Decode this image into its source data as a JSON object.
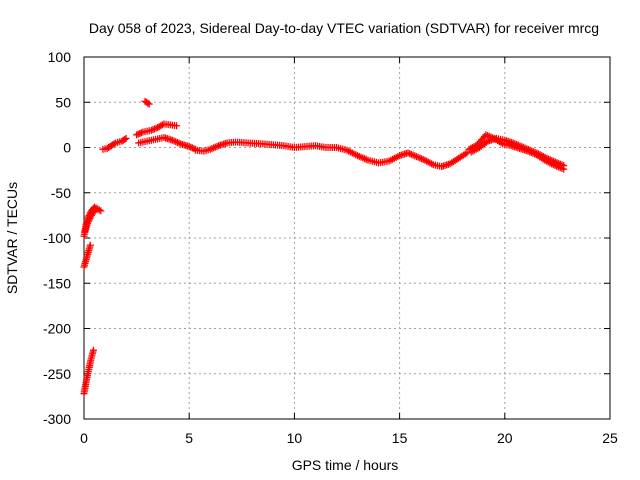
{
  "chart_data": {
    "type": "scatter",
    "title": "Day 058 of 2023, Sidereal Day-to-day VTEC variation (SDTVAR) for receiver mrcg",
    "xlabel": "GPS time / hours",
    "ylabel": "SDTVAR / TECUs",
    "xlim": [
      0,
      25
    ],
    "ylim": [
      -300,
      100
    ],
    "xticks": [
      0,
      5,
      10,
      15,
      20,
      25
    ],
    "yticks": [
      -300,
      -250,
      -200,
      -150,
      -100,
      -50,
      0,
      50,
      100
    ],
    "grid": true,
    "marker": "+",
    "series": [
      {
        "name": "SDTVAR",
        "color": "#ff0000",
        "segments": [
          [
            [
              0.0,
              -272
            ],
            [
              0.08,
              -262
            ],
            [
              0.16,
              -252
            ],
            [
              0.25,
              -243
            ],
            [
              0.32,
              -235
            ],
            [
              0.4,
              -228
            ],
            [
              0.45,
              -224
            ]
          ],
          [
            [
              0.0,
              -132
            ],
            [
              0.1,
              -124
            ],
            [
              0.2,
              -116
            ],
            [
              0.3,
              -108
            ]
          ],
          [
            [
              0.0,
              -98
            ],
            [
              0.1,
              -85
            ],
            [
              0.2,
              -77
            ],
            [
              0.35,
              -70
            ],
            [
              0.5,
              -66
            ],
            [
              0.8,
              -70
            ]
          ],
          [
            [
              0.05,
              -93
            ],
            [
              0.2,
              -82
            ],
            [
              0.35,
              -75
            ],
            [
              0.55,
              -68
            ]
          ],
          [
            [
              0.9,
              -2
            ],
            [
              1.1,
              -1
            ],
            [
              1.3,
              2
            ],
            [
              1.5,
              5
            ],
            [
              1.8,
              7
            ],
            [
              2.0,
              10
            ]
          ],
          [
            [
              2.9,
              51
            ],
            [
              3.1,
              48
            ]
          ],
          [
            [
              2.5,
              14
            ],
            [
              2.8,
              17
            ],
            [
              3.2,
              19
            ],
            [
              3.5,
              22
            ],
            [
              3.8,
              26
            ],
            [
              4.1,
              25
            ],
            [
              4.4,
              24
            ]
          ],
          [
            [
              2.6,
              5
            ],
            [
              3.0,
              7
            ],
            [
              3.4,
              9
            ],
            [
              3.8,
              11
            ],
            [
              4.2,
              8
            ],
            [
              4.6,
              4
            ],
            [
              5.0,
              1
            ],
            [
              5.3,
              -2
            ]
          ],
          [
            [
              5.3,
              -3
            ],
            [
              5.7,
              -4
            ],
            [
              6.0,
              -2
            ],
            [
              6.4,
              2
            ],
            [
              6.8,
              5
            ],
            [
              7.2,
              6
            ],
            [
              7.8,
              5
            ],
            [
              8.5,
              4
            ],
            [
              9.0,
              3
            ],
            [
              9.5,
              2
            ],
            [
              10.0,
              0
            ],
            [
              10.5,
              1
            ],
            [
              11.0,
              2
            ],
            [
              11.5,
              0
            ],
            [
              12.0,
              0
            ],
            [
              12.5,
              -3
            ],
            [
              13.0,
              -9
            ],
            [
              13.5,
              -14
            ],
            [
              14.0,
              -17
            ],
            [
              14.5,
              -15
            ],
            [
              15.0,
              -9
            ],
            [
              15.4,
              -6
            ],
            [
              15.8,
              -10
            ],
            [
              16.2,
              -14
            ],
            [
              16.6,
              -19
            ],
            [
              17.0,
              -21
            ],
            [
              17.4,
              -18
            ],
            [
              17.8,
              -12
            ],
            [
              18.2,
              -6
            ]
          ],
          [
            [
              18.4,
              -5
            ],
            [
              18.8,
              0
            ],
            [
              19.2,
              7
            ],
            [
              19.6,
              10
            ],
            [
              20.0,
              8
            ],
            [
              20.4,
              5
            ],
            [
              20.8,
              1
            ],
            [
              21.2,
              -3
            ],
            [
              21.6,
              -7
            ],
            [
              22.0,
              -12
            ],
            [
              22.4,
              -16
            ],
            [
              22.8,
              -20
            ]
          ],
          [
            [
              18.3,
              -2
            ],
            [
              18.7,
              3
            ],
            [
              19.1,
              14
            ],
            [
              19.5,
              10
            ],
            [
              19.9,
              4
            ],
            [
              20.3,
              2
            ],
            [
              20.7,
              -1
            ],
            [
              21.1,
              -4
            ],
            [
              21.5,
              -8
            ],
            [
              21.9,
              -14
            ],
            [
              22.3,
              -19
            ],
            [
              22.8,
              -24
            ]
          ]
        ]
      }
    ]
  }
}
